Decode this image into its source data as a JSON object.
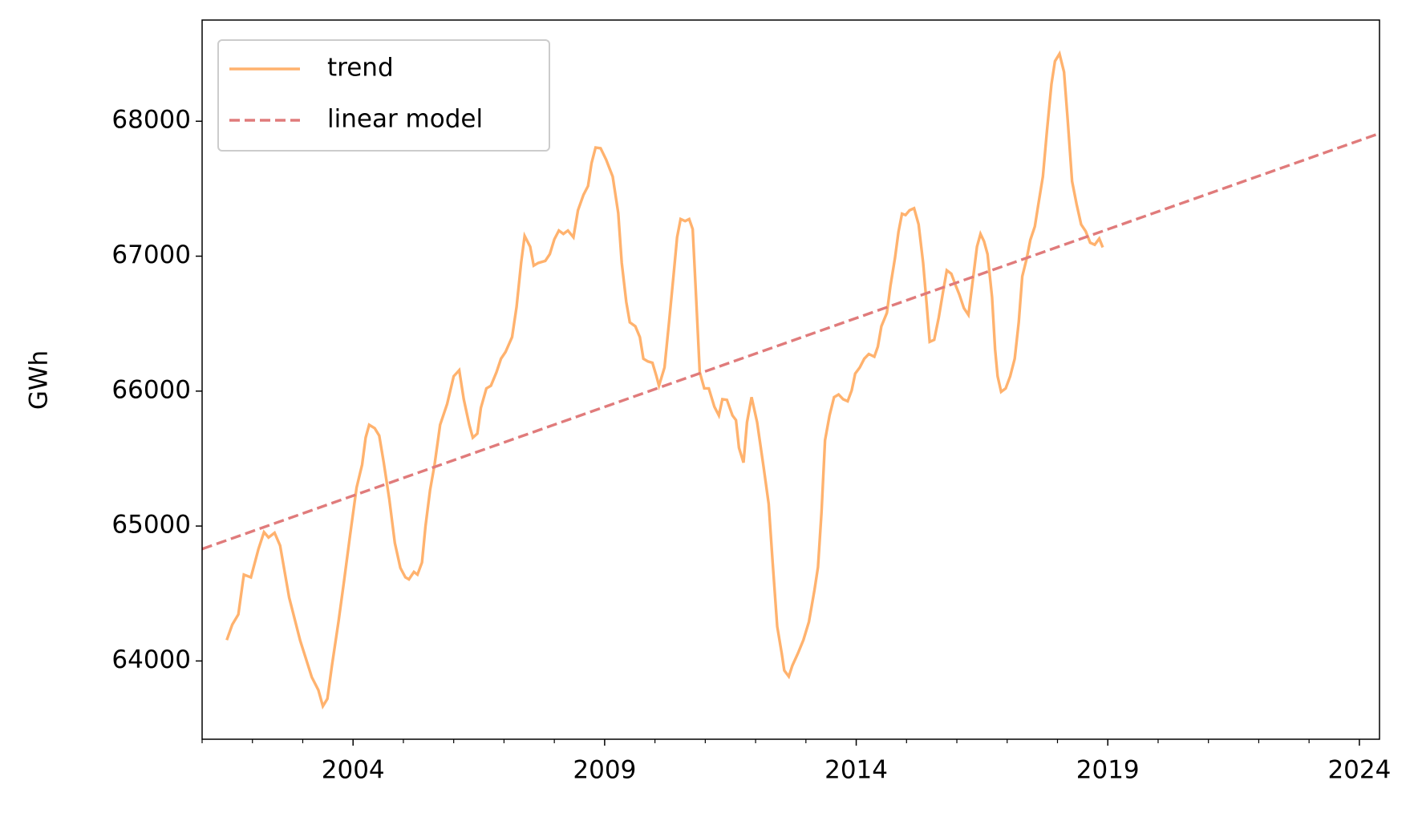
{
  "chart_data": {
    "type": "line",
    "ylabel": "GWh",
    "xlim": [
      2001.0,
      2024.4
    ],
    "ylim": [
      63420,
      68750
    ],
    "xticks": [
      2004,
      2009,
      2014,
      2019,
      2024
    ],
    "xticks_minor": [
      2001,
      2002,
      2003,
      2005,
      2006,
      2007,
      2008,
      2010,
      2011,
      2012,
      2013,
      2015,
      2016,
      2017,
      2018,
      2020,
      2021,
      2022,
      2023
    ],
    "yticks": [
      64000,
      65000,
      66000,
      67000,
      68000
    ],
    "legend": "upper left",
    "series": [
      {
        "name": "trend",
        "color": "#ffb26e",
        "linestyle": "solid",
        "x": [
          2001.49,
          2001.6,
          2001.72,
          2001.83,
          2001.97,
          2002.12,
          2002.23,
          2002.32,
          2002.44,
          2002.55,
          2002.73,
          2002.95,
          2003.18,
          2003.31,
          2003.4,
          2003.49,
          2003.58,
          2003.71,
          2003.82,
          2003.94,
          2004.07,
          2004.18,
          2004.25,
          2004.32,
          2004.43,
          2004.52,
          2004.61,
          2004.72,
          2004.83,
          2004.94,
          2005.04,
          2005.11,
          2005.21,
          2005.28,
          2005.37,
          2005.44,
          2005.53,
          2005.62,
          2005.73,
          2005.87,
          2006.0,
          2006.11,
          2006.2,
          2006.31,
          2006.38,
          2006.47,
          2006.54,
          2006.65,
          2006.74,
          2006.85,
          2006.94,
          2007.03,
          2007.16,
          2007.25,
          2007.34,
          2007.41,
          2007.52,
          2007.59,
          2007.68,
          2007.82,
          2007.91,
          2008.0,
          2008.09,
          2008.18,
          2008.27,
          2008.38,
          2008.47,
          2008.58,
          2008.67,
          2008.74,
          2008.82,
          2008.92,
          2009.03,
          2009.16,
          2009.27,
          2009.34,
          2009.43,
          2009.5,
          2009.61,
          2009.7,
          2009.77,
          2009.86,
          2009.95,
          2010.03,
          2010.08,
          2010.19,
          2010.28,
          2010.37,
          2010.44,
          2010.51,
          2010.6,
          2010.68,
          2010.75,
          2010.82,
          2010.89,
          2010.98,
          2011.07,
          2011.18,
          2011.27,
          2011.34,
          2011.43,
          2011.54,
          2011.61,
          2011.67,
          2011.76,
          2011.83,
          2011.92,
          2012.03,
          2012.16,
          2012.26,
          2012.34,
          2012.43,
          2012.52,
          2012.57,
          2012.66,
          2012.73,
          2012.84,
          2012.95,
          2013.06,
          2013.17,
          2013.24,
          2013.31,
          2013.38,
          2013.47,
          2013.56,
          2013.65,
          2013.74,
          2013.83,
          2013.91,
          2013.98,
          2014.07,
          2014.16,
          2014.25,
          2014.36,
          2014.43,
          2014.5,
          2014.61,
          2014.68,
          2014.77,
          2014.84,
          2014.91,
          2014.98,
          2015.06,
          2015.15,
          2015.24,
          2015.33,
          2015.4,
          2015.46,
          2015.55,
          2015.64,
          2015.73,
          2015.8,
          2015.89,
          2015.98,
          2016.05,
          2016.14,
          2016.23,
          2016.32,
          2016.4,
          2016.47,
          2016.54,
          2016.61,
          2016.7,
          2016.76,
          2016.81,
          2016.88,
          2016.97,
          2017.06,
          2017.15,
          2017.23,
          2017.3,
          2017.39,
          2017.46,
          2017.55,
          2017.62,
          2017.71,
          2017.79,
          2017.88,
          2017.95,
          2018.04,
          2018.13,
          2018.2,
          2018.29,
          2018.38,
          2018.47,
          2018.56,
          2018.65,
          2018.74,
          2018.83,
          2018.9
        ],
        "values": [
          64155,
          64270,
          64345,
          64640,
          64620,
          64830,
          64955,
          64915,
          64950,
          64855,
          64470,
          64150,
          63880,
          63785,
          63665,
          63720,
          63965,
          64290,
          64590,
          64930,
          65285,
          65455,
          65655,
          65750,
          65725,
          65670,
          65470,
          65200,
          64875,
          64690,
          64620,
          64605,
          64660,
          64640,
          64730,
          65000,
          65265,
          65455,
          65750,
          65905,
          66110,
          66155,
          65940,
          65750,
          65655,
          65685,
          65875,
          66020,
          66040,
          66140,
          66240,
          66290,
          66400,
          66625,
          66950,
          67150,
          67070,
          66930,
          66950,
          66965,
          67015,
          67125,
          67190,
          67165,
          67190,
          67140,
          67340,
          67455,
          67520,
          67690,
          67805,
          67800,
          67715,
          67590,
          67320,
          66950,
          66660,
          66510,
          66480,
          66400,
          66240,
          66220,
          66210,
          66110,
          66040,
          66175,
          66510,
          66860,
          67140,
          67275,
          67260,
          67275,
          67200,
          66680,
          66140,
          66020,
          66020,
          65885,
          65820,
          65940,
          65935,
          65820,
          65785,
          65580,
          65470,
          65770,
          65955,
          65770,
          65435,
          65165,
          64725,
          64255,
          64055,
          63930,
          63885,
          63965,
          64055,
          64155,
          64290,
          64525,
          64695,
          65100,
          65635,
          65820,
          65955,
          65975,
          65940,
          65925,
          66005,
          66130,
          66175,
          66240,
          66275,
          66255,
          66330,
          66480,
          66580,
          66780,
          66985,
          67180,
          67315,
          67305,
          67340,
          67355,
          67235,
          66950,
          66645,
          66365,
          66380,
          66545,
          66745,
          66895,
          66870,
          66780,
          66715,
          66615,
          66565,
          66830,
          67070,
          67165,
          67110,
          67015,
          66695,
          66310,
          66110,
          65995,
          66020,
          66110,
          66240,
          66510,
          66850,
          66985,
          67120,
          67220,
          67385,
          67590,
          67925,
          68275,
          68445,
          68500,
          68365,
          68025,
          67555,
          67385,
          67235,
          67185,
          67100,
          67085,
          67130,
          67065
        ]
      },
      {
        "name": "linear model",
        "color": "#e07b7b",
        "linestyle": "dashed",
        "x": [
          2001.0,
          2024.4
        ],
        "values": [
          64830,
          67910
        ]
      }
    ]
  }
}
